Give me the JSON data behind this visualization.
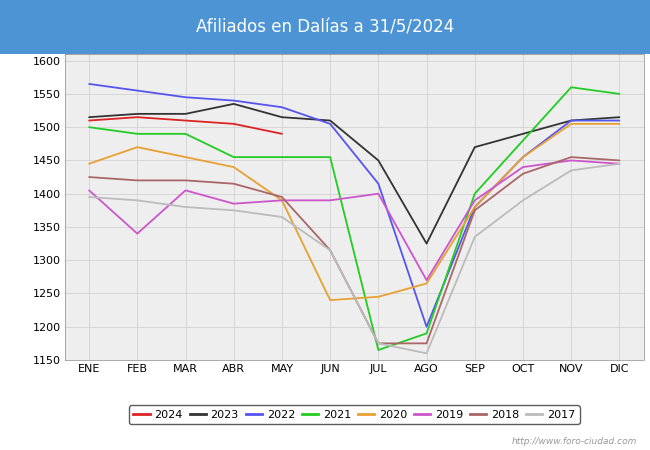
{
  "title": "Afiliados en Dalías a 31/5/2024",
  "title_bg_color": "#4d94d5",
  "title_text_color": "white",
  "months": [
    "ENE",
    "FEB",
    "MAR",
    "ABR",
    "MAY",
    "JUN",
    "JUL",
    "AGO",
    "SEP",
    "OCT",
    "NOV",
    "DIC"
  ],
  "ylim": [
    1150,
    1610
  ],
  "yticks": [
    1150,
    1200,
    1250,
    1300,
    1350,
    1400,
    1450,
    1500,
    1550,
    1600
  ],
  "watermark": "http://www.foro-ciudad.com",
  "series": {
    "2024": {
      "color": "#dd2222",
      "data": [
        1510,
        1515,
        1510,
        1505,
        1490,
        null,
        null,
        null,
        null,
        null,
        null,
        null
      ]
    },
    "2023": {
      "color": "#333333",
      "data": [
        1515,
        1520,
        1520,
        1535,
        1515,
        1510,
        1450,
        1325,
        1470,
        1490,
        1510,
        1515
      ]
    },
    "2022": {
      "color": "#5555ee",
      "data": [
        1565,
        1555,
        1545,
        1540,
        1530,
        1505,
        1415,
        1200,
        1380,
        1455,
        1510,
        1510
      ]
    },
    "2021": {
      "color": "#22cc22",
      "data": [
        1500,
        1490,
        1490,
        1455,
        1455,
        1455,
        1165,
        1190,
        1400,
        1480,
        1560,
        1550
      ]
    },
    "2020": {
      "color": "#e8a030",
      "data": [
        1445,
        1470,
        1455,
        1440,
        1390,
        1240,
        1245,
        1265,
        1380,
        1455,
        1505,
        1505
      ]
    },
    "2019": {
      "color": "#cc55cc",
      "data": [
        1405,
        1340,
        1405,
        1385,
        1390,
        1390,
        1400,
        1270,
        1390,
        1440,
        1450,
        1445
      ]
    },
    "2018": {
      "color": "#aa6666",
      "data": [
        1425,
        1420,
        1420,
        1415,
        1395,
        1315,
        1175,
        1175,
        1375,
        1430,
        1455,
        1450
      ]
    },
    "2017": {
      "color": "#bbbbbb",
      "data": [
        1395,
        1390,
        1380,
        1375,
        1365,
        1315,
        1175,
        1160,
        1335,
        1390,
        1435,
        1445
      ]
    }
  }
}
